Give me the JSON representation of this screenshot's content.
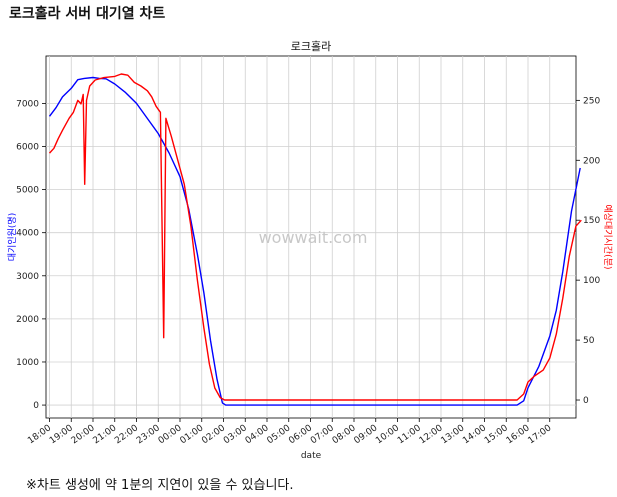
{
  "page": {
    "title": "로크홀라 서버 대기열 차트",
    "footnote": "※차트 생성에 약 1분의 지연이 있을 수 있습니다."
  },
  "chart_data": {
    "type": "line",
    "title": "로크홀라",
    "watermark": "wowwait.com",
    "xlabel": "date",
    "ylabel_left": "대기인원(명)",
    "ylabel_right": "예상대기시간(분)",
    "x_tick_labels": [
      "18:00",
      "19:00",
      "20:00",
      "21:00",
      "22:00",
      "23:00",
      "00:00",
      "01:00",
      "02:00",
      "03:00",
      "04:00",
      "05:00",
      "06:00",
      "07:00",
      "08:00",
      "09:00",
      "10:00",
      "11:00",
      "12:00",
      "13:00",
      "14:00",
      "15:00",
      "16:00",
      "17:00"
    ],
    "x_range_hours": [
      0,
      24.1
    ],
    "ylim_left": [
      -300,
      8100
    ],
    "yticks_left": [
      0,
      1000,
      2000,
      3000,
      4000,
      5000,
      6000,
      7000
    ],
    "ylim_right": [
      -15,
      287
    ],
    "yticks_right": [
      0,
      50,
      100,
      150,
      200,
      250
    ],
    "grid": true,
    "series": [
      {
        "name": "대기인원(명)",
        "axis": "left",
        "color": "#0000ff",
        "points": [
          [
            0,
            6700
          ],
          [
            0.3,
            6900
          ],
          [
            0.6,
            7150
          ],
          [
            1,
            7350
          ],
          [
            1.3,
            7550
          ],
          [
            1.6,
            7580
          ],
          [
            2,
            7600
          ],
          [
            2.3,
            7580
          ],
          [
            2.6,
            7570
          ],
          [
            3,
            7450
          ],
          [
            3.5,
            7250
          ],
          [
            4,
            7000
          ],
          [
            4.5,
            6650
          ],
          [
            5,
            6300
          ],
          [
            5.5,
            5850
          ],
          [
            6,
            5300
          ],
          [
            6.4,
            4550
          ],
          [
            6.8,
            3500
          ],
          [
            7.1,
            2600
          ],
          [
            7.4,
            1500
          ],
          [
            7.7,
            600
          ],
          [
            7.95,
            50
          ],
          [
            8.1,
            0
          ],
          [
            21.5,
            0
          ],
          [
            21.8,
            100
          ],
          [
            22,
            400
          ],
          [
            22.5,
            900
          ],
          [
            23,
            1600
          ],
          [
            23.3,
            2200
          ],
          [
            23.6,
            3100
          ],
          [
            24,
            4500
          ],
          [
            24.4,
            5500
          ]
        ]
      },
      {
        "name": "예상대기시간(분)",
        "axis": "right",
        "color": "#ff0000",
        "points": [
          [
            0,
            206
          ],
          [
            0.2,
            210
          ],
          [
            0.4,
            218
          ],
          [
            0.6,
            225
          ],
          [
            0.9,
            235
          ],
          [
            1.1,
            240
          ],
          [
            1.3,
            250
          ],
          [
            1.45,
            247
          ],
          [
            1.55,
            255
          ],
          [
            1.62,
            180
          ],
          [
            1.7,
            250
          ],
          [
            1.85,
            262
          ],
          [
            2.1,
            267
          ],
          [
            2.5,
            269
          ],
          [
            3,
            270
          ],
          [
            3.3,
            272
          ],
          [
            3.6,
            271
          ],
          [
            3.9,
            265
          ],
          [
            4.2,
            262
          ],
          [
            4.5,
            258
          ],
          [
            4.7,
            253
          ],
          [
            4.9,
            245
          ],
          [
            5.1,
            240
          ],
          [
            5.25,
            52
          ],
          [
            5.35,
            235
          ],
          [
            5.6,
            220
          ],
          [
            5.9,
            200
          ],
          [
            6.2,
            180
          ],
          [
            6.5,
            145
          ],
          [
            6.8,
            100
          ],
          [
            7.1,
            60
          ],
          [
            7.35,
            30
          ],
          [
            7.6,
            10
          ],
          [
            7.85,
            2
          ],
          [
            8.05,
            0
          ],
          [
            21.5,
            0
          ],
          [
            21.8,
            5
          ],
          [
            22,
            15
          ],
          [
            22.3,
            20
          ],
          [
            22.7,
            25
          ],
          [
            23,
            35
          ],
          [
            23.3,
            55
          ],
          [
            23.6,
            85
          ],
          [
            23.9,
            120
          ],
          [
            24.2,
            145
          ],
          [
            24.45,
            150
          ]
        ]
      }
    ]
  }
}
